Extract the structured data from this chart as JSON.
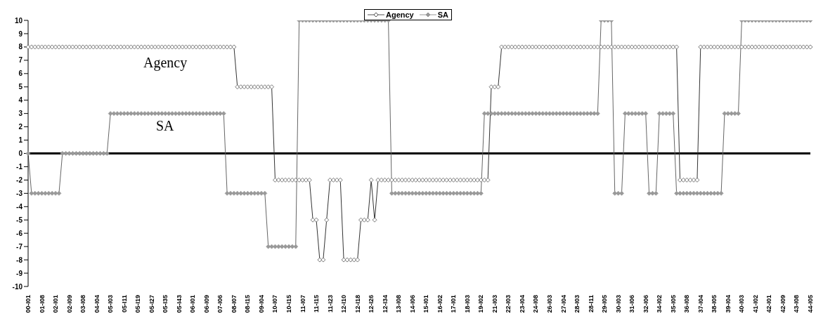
{
  "chart_data": {
    "type": "line",
    "legend": "top",
    "marker": "diamond",
    "ylim": [
      -10,
      10
    ],
    "yticks": [
      -10,
      -9,
      -8,
      -7,
      -6,
      -5,
      -4,
      -3,
      -2,
      -1,
      0,
      1,
      2,
      3,
      4,
      5,
      6,
      7,
      8,
      9,
      10
    ],
    "ref_lines": [
      {
        "axis": "y",
        "value": 0,
        "color": "#000000"
      }
    ],
    "annotations": [
      "Agency",
      "SA"
    ],
    "categories": [
      "00-I01",
      null,
      null,
      null,
      "01-I08",
      null,
      null,
      null,
      "02-I01",
      null,
      null,
      null,
      "02-I09",
      null,
      null,
      null,
      "03-I08",
      null,
      null,
      null,
      "04-I04",
      null,
      null,
      null,
      "05-I03",
      null,
      null,
      null,
      "05-I11",
      null,
      null,
      null,
      "05-I19",
      null,
      null,
      null,
      "05-I27",
      null,
      null,
      null,
      "05-I35",
      null,
      null,
      null,
      "05-I43",
      null,
      null,
      null,
      "06-I01",
      null,
      null,
      null,
      "06-I09",
      null,
      null,
      null,
      "07-I06",
      null,
      null,
      null,
      "08-I07",
      null,
      null,
      null,
      "08-I15",
      null,
      null,
      null,
      "09-I04",
      null,
      null,
      null,
      "10-I07",
      null,
      null,
      null,
      "10-I15",
      null,
      null,
      null,
      "11-I07",
      null,
      null,
      null,
      "11-I15",
      null,
      null,
      null,
      "11-I23",
      null,
      null,
      null,
      "12-I10",
      null,
      null,
      null,
      "12-I18",
      null,
      null,
      null,
      "12-I26",
      null,
      null,
      null,
      "12-I34",
      null,
      null,
      null,
      "13-I08",
      null,
      null,
      null,
      "14-I06",
      null,
      null,
      null,
      "15-I01",
      null,
      null,
      null,
      "16-I02",
      null,
      null,
      null,
      "17-I01",
      null,
      null,
      null,
      "18-I03",
      null,
      null,
      null,
      "19-I02",
      null,
      null,
      null,
      "21-I03",
      null,
      null,
      null,
      "22-I03",
      null,
      null,
      null,
      "23-I04",
      null,
      null,
      null,
      "24-I08",
      null,
      null,
      null,
      "26-I03",
      null,
      null,
      null,
      "27-I04",
      null,
      null,
      null,
      "28-I03",
      null,
      null,
      null,
      "28-I11",
      null,
      null,
      null,
      "29-I05",
      null,
      null,
      null,
      "30-I03",
      null,
      null,
      null,
      "31-I06",
      null,
      null,
      null,
      "32-I06",
      null,
      null,
      null,
      "34-I02",
      null,
      null,
      null,
      "35-I05",
      null,
      null,
      null,
      "36-I08",
      null,
      null,
      null,
      "37-I04",
      null,
      null,
      null,
      "38-I05",
      null,
      null,
      null,
      "39-I04",
      null,
      null,
      null,
      "40-I03",
      null,
      null,
      null,
      "41-I02",
      null,
      null,
      null,
      "42-I01",
      null,
      null,
      null,
      "42-I09",
      null,
      null,
      null,
      "43-I08",
      null,
      null,
      null,
      "44-I05"
    ],
    "series": [
      {
        "name": "Agency",
        "color": "#555555",
        "values": [
          8,
          8,
          8,
          8,
          8,
          8,
          8,
          8,
          8,
          8,
          8,
          8,
          8,
          8,
          8,
          8,
          8,
          8,
          8,
          8,
          8,
          8,
          8,
          8,
          8,
          8,
          8,
          8,
          8,
          8,
          8,
          8,
          8,
          8,
          8,
          8,
          8,
          8,
          8,
          8,
          8,
          8,
          8,
          8,
          8,
          8,
          8,
          8,
          8,
          8,
          8,
          8,
          8,
          8,
          8,
          8,
          8,
          8,
          8,
          8,
          8,
          5,
          5,
          5,
          5,
          5,
          5,
          5,
          5,
          5,
          5,
          5,
          -2,
          -2,
          -2,
          -2,
          -2,
          -2,
          -2,
          -2,
          -2,
          -2,
          -2,
          -5,
          -5,
          -8,
          -8,
          -5,
          -2,
          -2,
          -2,
          -2,
          -8,
          -8,
          -8,
          -8,
          -8,
          -5,
          -5,
          -5,
          -2,
          -5,
          -2,
          -2,
          -2,
          -2,
          -2,
          -2,
          -2,
          -2,
          -2,
          -2,
          -2,
          -2,
          -2,
          -2,
          -2,
          -2,
          -2,
          -2,
          -2,
          -2,
          -2,
          -2,
          -2,
          -2,
          -2,
          -2,
          -2,
          -2,
          -2,
          -2,
          -2,
          -2,
          -2,
          5,
          5,
          5,
          8,
          8,
          8,
          8,
          8,
          8,
          8,
          8,
          8,
          8,
          8,
          8,
          8,
          8,
          8,
          8,
          8,
          8,
          8,
          8,
          8,
          8,
          8,
          8,
          8,
          8,
          8,
          8,
          8,
          8,
          8,
          8,
          8,
          8,
          8,
          8,
          8,
          8,
          8,
          8,
          8,
          8,
          8,
          8,
          8,
          8,
          8,
          8,
          8,
          8,
          8,
          8,
          -2,
          -2,
          -2,
          -2,
          -2,
          -2,
          8,
          8,
          8,
          8,
          8,
          8,
          8,
          8,
          8,
          8,
          8,
          8,
          8,
          8,
          8,
          8,
          8,
          8,
          8,
          8,
          8,
          8,
          8,
          8,
          8,
          8,
          8,
          8,
          8,
          8,
          8,
          8,
          8
        ]
      },
      {
        "name": "SA",
        "color": "#999999",
        "values": [
          0,
          -3,
          -3,
          -3,
          -3,
          -3,
          -3,
          -3,
          -3,
          -3,
          0,
          0,
          0,
          0,
          0,
          0,
          0,
          0,
          0,
          0,
          0,
          0,
          0,
          0,
          3,
          3,
          3,
          3,
          3,
          3,
          3,
          3,
          3,
          3,
          3,
          3,
          3,
          3,
          3,
          3,
          3,
          3,
          3,
          3,
          3,
          3,
          3,
          3,
          3,
          3,
          3,
          3,
          3,
          3,
          3,
          3,
          3,
          3,
          -3,
          -3,
          -3,
          -3,
          -3,
          -3,
          -3,
          -3,
          -3,
          -3,
          -3,
          -3,
          -7,
          -7,
          -7,
          -7,
          -7,
          -7,
          -7,
          -7,
          -7,
          10,
          10,
          10,
          10,
          10,
          10,
          10,
          10,
          10,
          10,
          10,
          10,
          10,
          10,
          10,
          10,
          10,
          10,
          10,
          10,
          10,
          10,
          10,
          10,
          10,
          10,
          10,
          -3,
          -3,
          -3,
          -3,
          -3,
          -3,
          -3,
          -3,
          -3,
          -3,
          -3,
          -3,
          -3,
          -3,
          -3,
          -3,
          -3,
          -3,
          -3,
          -3,
          -3,
          -3,
          -3,
          -3,
          -3,
          -3,
          -3,
          3,
          3,
          3,
          3,
          3,
          3,
          3,
          3,
          3,
          3,
          3,
          3,
          3,
          3,
          3,
          3,
          3,
          3,
          3,
          3,
          3,
          3,
          3,
          3,
          3,
          3,
          3,
          3,
          3,
          3,
          3,
          3,
          3,
          3,
          10,
          10,
          10,
          10,
          -3,
          -3,
          -3,
          3,
          3,
          3,
          3,
          3,
          3,
          3,
          -3,
          -3,
          -3,
          3,
          3,
          3,
          3,
          3,
          -3,
          -3,
          -3,
          -3,
          -3,
          -3,
          -3,
          -3,
          -3,
          -3,
          -3,
          -3,
          -3,
          -3,
          3,
          3,
          3,
          3,
          3,
          10,
          10,
          10,
          10,
          10,
          10,
          10,
          10,
          10,
          10,
          10,
          10,
          10,
          10,
          10,
          10,
          10,
          10,
          10,
          10,
          10
        ]
      }
    ]
  }
}
